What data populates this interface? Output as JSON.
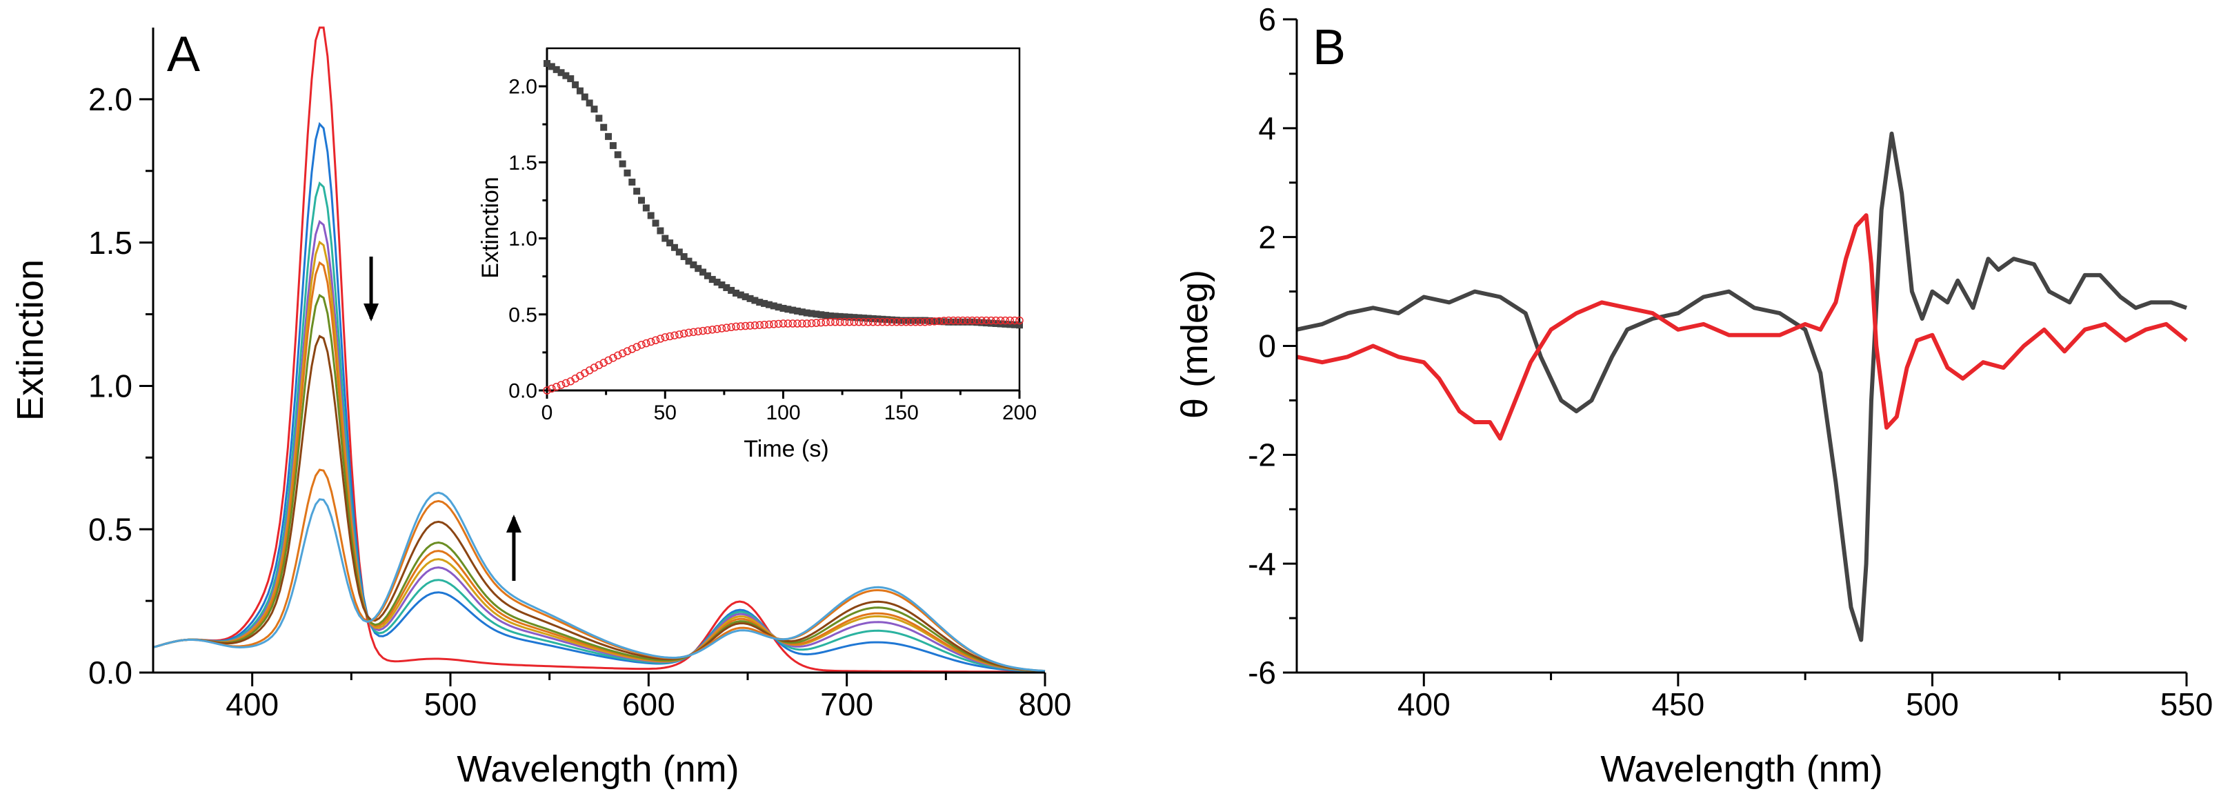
{
  "figure": {
    "panel_labels": [
      "A",
      "B"
    ]
  },
  "chart_data": [
    {
      "id": "A",
      "type": "line",
      "panel_label": "A",
      "xlabel": "Wavelength (nm)",
      "ylabel": "Extinction",
      "xlim": [
        350,
        800
      ],
      "ylim": [
        0,
        2.25
      ],
      "xticks": [
        400,
        500,
        600,
        700,
        800
      ],
      "xtick_labels": [
        "400",
        "500",
        "600",
        "700",
        "800"
      ],
      "yticks": [
        0.0,
        0.5,
        1.0,
        1.5,
        2.0
      ],
      "ytick_labels": [
        "0.0",
        "0.5",
        "1.0",
        "1.5",
        "2.0"
      ],
      "grid": false,
      "annotations": [
        "down arrow near 460 nm (Soret band decreases)",
        "up arrow near 530 nm (Q-bands increase)"
      ],
      "series_colors": [
        "#e8262b",
        "#1f77d4",
        "#2bb3a0",
        "#8a5cc7",
        "#d4a017",
        "#e0761a",
        "#6b8e23",
        "#8b4513",
        "#e0761a",
        "#4fa3d8",
        "#9d9d00",
        "#3b6fc2"
      ],
      "series_peaks": {
        "description": "peak extinctions per spectrum",
        "soret_435": [
          2.15,
          1.8,
          1.6,
          1.47,
          1.4,
          1.33,
          1.22,
          1.08,
          0.63,
          0.53
        ],
        "q_490": [
          0.02,
          0.18,
          0.21,
          0.24,
          0.26,
          0.28,
          0.3,
          0.35,
          0.4,
          0.42
        ],
        "q_715": [
          0.0,
          0.1,
          0.14,
          0.17,
          0.19,
          0.2,
          0.22,
          0.24,
          0.28,
          0.29
        ],
        "q_645": [
          0.24,
          0.2,
          0.19,
          0.18,
          0.17,
          0.16,
          0.15,
          0.14,
          0.12,
          0.11
        ]
      },
      "inset": {
        "type": "scatter",
        "xlabel": "Time (s)",
        "ylabel": "Extinction",
        "xlim": [
          0,
          200
        ],
        "ylim": [
          0,
          2.25
        ],
        "xticks": [
          0,
          50,
          100,
          150,
          200
        ],
        "xtick_labels": [
          "0",
          "50",
          "100",
          "150",
          "200"
        ],
        "yticks": [
          0.0,
          0.5,
          1.0,
          1.5,
          2.0
        ],
        "ytick_labels": [
          "0.0",
          "0.5",
          "1.0",
          "1.5",
          "2.0"
        ],
        "series": [
          {
            "color": "#444444",
            "marker": "filled-square",
            "x": [
              0,
              10,
              20,
              30,
              40,
              50,
              60,
              70,
              80,
              90,
              100,
              110,
              120,
              130,
              140,
              150,
              160,
              170,
              180,
              190,
              200
            ],
            "y": [
              2.15,
              2.05,
              1.85,
              1.55,
              1.25,
              1.0,
              0.85,
              0.73,
              0.64,
              0.58,
              0.54,
              0.51,
              0.49,
              0.48,
              0.47,
              0.46,
              0.46,
              0.45,
              0.45,
              0.44,
              0.43
            ]
          },
          {
            "color": "#e8262b",
            "marker": "open-circle",
            "x": [
              0,
              10,
              20,
              30,
              40,
              50,
              60,
              70,
              80,
              90,
              100,
              110,
              120,
              130,
              140,
              150,
              160,
              170,
              180,
              190,
              200
            ],
            "y": [
              0.0,
              0.06,
              0.15,
              0.23,
              0.3,
              0.35,
              0.38,
              0.4,
              0.42,
              0.43,
              0.44,
              0.44,
              0.45,
              0.45,
              0.45,
              0.45,
              0.45,
              0.46,
              0.46,
              0.46,
              0.46
            ]
          }
        ]
      }
    },
    {
      "id": "B",
      "type": "line",
      "panel_label": "B",
      "xlabel": "Wavelength (nm)",
      "ylabel": "θ (mdeg)",
      "xlim": [
        375,
        550
      ],
      "ylim": [
        -6,
        6
      ],
      "xticks": [
        400,
        450,
        500,
        550
      ],
      "xtick_labels": [
        "400",
        "450",
        "500",
        "550"
      ],
      "yticks": [
        -6,
        -4,
        -2,
        0,
        2,
        4,
        6
      ],
      "ytick_labels": [
        "-6",
        "-4",
        "-2",
        "0",
        "2",
        "4",
        "6"
      ],
      "grid": false,
      "series": [
        {
          "color": "#444444",
          "x": [
            375,
            380,
            385,
            390,
            395,
            400,
            405,
            410,
            415,
            420,
            423,
            427,
            430,
            433,
            437,
            440,
            445,
            450,
            455,
            460,
            465,
            470,
            475,
            478,
            481,
            484,
            486,
            487,
            488,
            490,
            492,
            494,
            496,
            498,
            500,
            503,
            505,
            508,
            511,
            513,
            516,
            520,
            523,
            527,
            530,
            533,
            537,
            540,
            543,
            547,
            550
          ],
          "y": [
            0.3,
            0.4,
            0.6,
            0.7,
            0.6,
            0.9,
            0.8,
            1.0,
            0.9,
            0.6,
            -0.2,
            -1.0,
            -1.2,
            -1.0,
            -0.2,
            0.3,
            0.5,
            0.6,
            0.9,
            1.0,
            0.7,
            0.6,
            0.3,
            -0.5,
            -2.5,
            -4.8,
            -5.4,
            -4.0,
            -1.0,
            2.5,
            3.9,
            2.8,
            1.0,
            0.5,
            1.0,
            0.8,
            1.2,
            0.7,
            1.6,
            1.4,
            1.6,
            1.5,
            1.0,
            0.8,
            1.3,
            1.3,
            0.9,
            0.7,
            0.8,
            0.8,
            0.7
          ]
        },
        {
          "color": "#e8262b",
          "x": [
            375,
            380,
            385,
            390,
            395,
            400,
            403,
            407,
            410,
            413,
            415,
            418,
            421,
            425,
            430,
            435,
            440,
            445,
            450,
            455,
            460,
            465,
            470,
            475,
            478,
            481,
            483,
            485,
            487,
            488,
            489,
            491,
            493,
            495,
            497,
            500,
            503,
            506,
            510,
            514,
            518,
            522,
            526,
            530,
            534,
            538,
            542,
            546,
            550
          ],
          "y": [
            -0.2,
            -0.3,
            -0.2,
            0.0,
            -0.2,
            -0.3,
            -0.6,
            -1.2,
            -1.4,
            -1.4,
            -1.7,
            -1.0,
            -0.3,
            0.3,
            0.6,
            0.8,
            0.7,
            0.6,
            0.3,
            0.4,
            0.2,
            0.2,
            0.2,
            0.4,
            0.3,
            0.8,
            1.6,
            2.2,
            2.4,
            1.5,
            0.0,
            -1.5,
            -1.3,
            -0.4,
            0.1,
            0.2,
            -0.4,
            -0.6,
            -0.3,
            -0.4,
            0.0,
            0.3,
            -0.1,
            0.3,
            0.4,
            0.1,
            0.3,
            0.4,
            0.1
          ]
        }
      ]
    }
  ]
}
